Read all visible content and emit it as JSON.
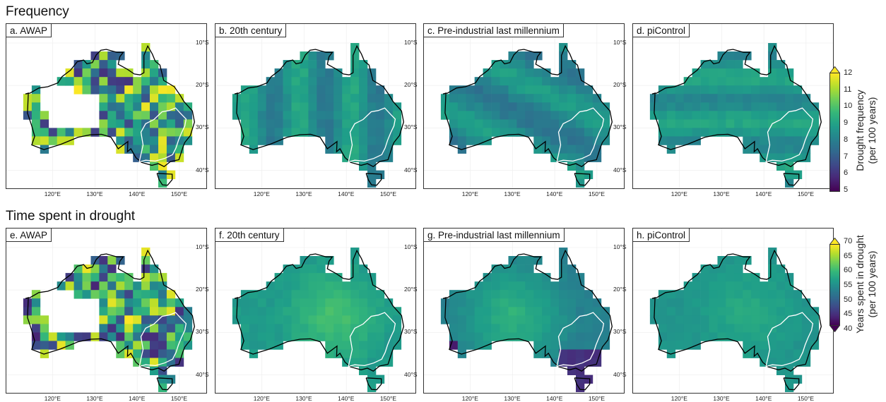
{
  "titles": {
    "top": "Frequency",
    "bottom": "Time spent in drought"
  },
  "panels": {
    "a": "a. AWAP",
    "b": "b. 20th century",
    "c": "c. Pre-industrial last millennium",
    "d": "d. piControl",
    "e": "e. AWAP",
    "f": "f. 20th century",
    "g": "g. Pre-industrial last millennium",
    "h": "h. piControl"
  },
  "lat_ticks": [
    "10°S",
    "20°S",
    "30°S",
    "40°S"
  ],
  "lon_ticks": [
    "120°E",
    "130°E",
    "140°E",
    "150°E"
  ],
  "colorbars": {
    "frequency": {
      "label_line1": "Drought frequency",
      "label_line2": "(per 100 years)",
      "ticks": [
        "12",
        "11",
        "10",
        "9",
        "8",
        "7",
        "6",
        "5"
      ],
      "min": 5,
      "max": 12,
      "extend": "max"
    },
    "time": {
      "label_line1": "Years spent in drought",
      "label_line2": "(per 100 years)",
      "ticks": [
        "70",
        "65",
        "60",
        "55",
        "50",
        "45",
        "40"
      ],
      "min": 40,
      "max": 70,
      "extend": "both"
    }
  },
  "colormap": "viridis",
  "colors": {
    "coastline": "#000000",
    "region_outline": "#ffffff",
    "background": "#ffffff"
  }
}
